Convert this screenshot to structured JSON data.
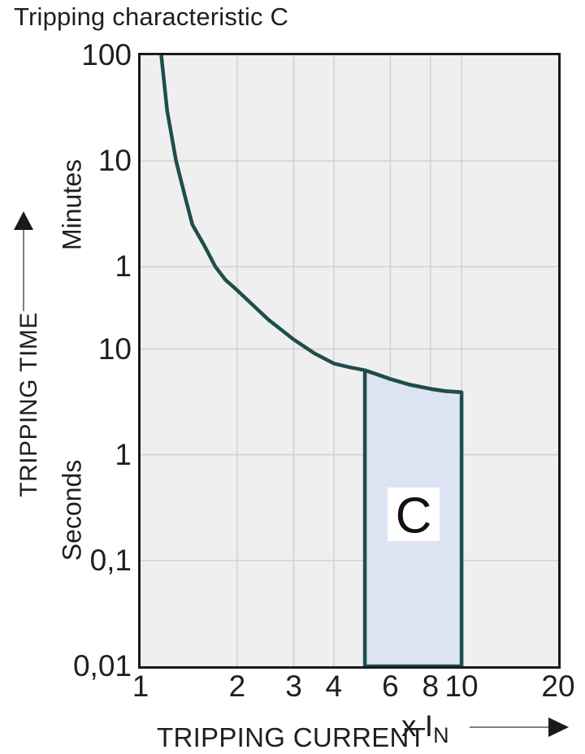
{
  "title": "Tripping characteristic C",
  "colors": {
    "curve": "#1d4e4a",
    "region_fill": "#dce3f2",
    "plot_background": "#efefef",
    "gridline": "#d5d5d5",
    "plot_border": "#1a1a1a",
    "text": "#1f1f1f",
    "region_label_bg": "#ffffff"
  },
  "y_axis_area": {
    "axis_title": "TRIPPING TIME",
    "unit_upper": "Minutes",
    "unit_lower": "Seconds"
  },
  "x_axis_area": {
    "axis_title": "TRIPPING CURRENT",
    "multiplier_prefix": "x I",
    "multiplier_sub": "N"
  },
  "chart_data": {
    "type": "line",
    "title": "Tripping characteristic C",
    "x_axis": {
      "label": "TRIPPING CURRENT (x IN)",
      "scale": "log",
      "range": [
        1,
        20
      ],
      "ticks": [
        {
          "label": "1",
          "value": 1
        },
        {
          "label": "2",
          "value": 2
        },
        {
          "label": "3",
          "value": 3
        },
        {
          "label": "4",
          "value": 4
        },
        {
          "label": "6",
          "value": 6
        },
        {
          "label": "8",
          "value": 8
        },
        {
          "label": "10",
          "value": 10
        },
        {
          "label": "20",
          "value": 20
        }
      ]
    },
    "y_axis": {
      "label": "TRIPPING TIME",
      "scale": "log",
      "range_seconds": [
        0.01,
        6000
      ],
      "tick_groups": [
        {
          "unit": "Minutes",
          "ticks": [
            {
              "label": "100",
              "seconds": 6000
            },
            {
              "label": "10",
              "seconds": 600
            },
            {
              "label": "1",
              "seconds": 60
            }
          ]
        },
        {
          "unit": "Seconds",
          "ticks": [
            {
              "label": "10",
              "seconds": 10
            },
            {
              "label": "1",
              "seconds": 1
            },
            {
              "label": "0,1",
              "seconds": 0.1
            },
            {
              "label": "0,01",
              "seconds": 0.01
            }
          ]
        }
      ]
    },
    "grid": {
      "vertical_x": [
        2,
        3,
        4,
        6,
        8,
        10
      ],
      "horizontal_seconds": [
        600,
        60,
        10,
        1,
        0.1
      ]
    },
    "series": [
      {
        "name": "C tripping characteristic curve",
        "points": [
          [
            1.16,
            6000
          ],
          [
            1.21,
            1800
          ],
          [
            1.29,
            600
          ],
          [
            1.38,
            266
          ],
          [
            1.45,
            150
          ],
          [
            1.58,
            95
          ],
          [
            1.71,
            60
          ],
          [
            1.84,
            45
          ],
          [
            2.0,
            36
          ],
          [
            2.24,
            26
          ],
          [
            2.5,
            19
          ],
          [
            2.76,
            15
          ],
          [
            3.0,
            12.3
          ],
          [
            3.48,
            9.1
          ],
          [
            4.0,
            7.3
          ],
          [
            4.5,
            6.7
          ],
          [
            5.0,
            6.3
          ],
          [
            5.5,
            5.7
          ],
          [
            6.0,
            5.2
          ],
          [
            6.9,
            4.6
          ],
          [
            8.0,
            4.2
          ],
          [
            8.9,
            4.0
          ],
          [
            10.0,
            3.9
          ]
        ]
      }
    ],
    "region": {
      "label": "C",
      "x_range": [
        5,
        10
      ],
      "bottom_seconds": 0.01,
      "description": "instantaneous trip band between 5 and 10 times rated current"
    }
  }
}
